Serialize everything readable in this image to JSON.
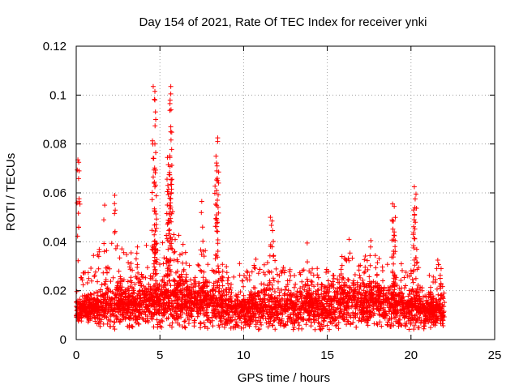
{
  "chart_data": {
    "type": "scatter",
    "title": "Day 154 of 2021, Rate Of TEC Index for receiver ynki",
    "xlabel": "GPS time / hours",
    "ylabel": "ROTI / TECUs",
    "xlim": [
      0,
      25
    ],
    "ylim": [
      0,
      0.12
    ],
    "x_ticks": [
      0,
      5,
      10,
      15,
      20,
      25
    ],
    "x_tick_labels": [
      "0",
      "5",
      "10",
      "15",
      "20",
      "25"
    ],
    "y_ticks": [
      0,
      0.02,
      0.04,
      0.06,
      0.08,
      0.1,
      0.12
    ],
    "y_tick_labels": [
      "0",
      "0.02",
      "0.04",
      "0.06",
      "0.08",
      "0.1",
      "0.12"
    ],
    "grid": true,
    "marker": "+",
    "series": [
      {
        "name": "ROTI",
        "color": "#ff0000",
        "x_range": [
          0,
          22
        ],
        "notable_points": [
          {
            "x": 0.1,
            "y": 0.0735
          },
          {
            "x": 0.15,
            "y": 0.0725
          },
          {
            "x": 4.6,
            "y": 0.1035
          },
          {
            "x": 4.7,
            "y": 0.1015
          },
          {
            "x": 4.7,
            "y": 0.098
          },
          {
            "x": 4.75,
            "y": 0.09
          },
          {
            "x": 4.7,
            "y": 0.08
          },
          {
            "x": 4.75,
            "y": 0.0765
          },
          {
            "x": 4.6,
            "y": 0.0665
          },
          {
            "x": 4.7,
            "y": 0.0625
          },
          {
            "x": 5.65,
            "y": 0.1035
          },
          {
            "x": 5.65,
            "y": 0.1005
          },
          {
            "x": 5.6,
            "y": 0.0965
          },
          {
            "x": 5.65,
            "y": 0.087
          },
          {
            "x": 5.65,
            "y": 0.085
          },
          {
            "x": 5.45,
            "y": 0.0745
          },
          {
            "x": 5.5,
            "y": 0.0715
          },
          {
            "x": 5.6,
            "y": 0.0745
          },
          {
            "x": 5.55,
            "y": 0.0675
          },
          {
            "x": 5.7,
            "y": 0.0635
          },
          {
            "x": 5.45,
            "y": 0.0605
          },
          {
            "x": 8.45,
            "y": 0.0825
          },
          {
            "x": 8.45,
            "y": 0.081
          },
          {
            "x": 8.35,
            "y": 0.075
          },
          {
            "x": 8.4,
            "y": 0.069
          },
          {
            "x": 8.45,
            "y": 0.065
          },
          {
            "x": 8.5,
            "y": 0.064
          },
          {
            "x": 2.3,
            "y": 0.059
          },
          {
            "x": 1.7,
            "y": 0.055
          },
          {
            "x": 7.5,
            "y": 0.0565
          },
          {
            "x": 11.6,
            "y": 0.05
          },
          {
            "x": 11.7,
            "y": 0.0485
          },
          {
            "x": 13.8,
            "y": 0.0395
          },
          {
            "x": 16.3,
            "y": 0.041
          },
          {
            "x": 17.6,
            "y": 0.0405
          },
          {
            "x": 18.9,
            "y": 0.0555
          },
          {
            "x": 19.0,
            "y": 0.0545
          },
          {
            "x": 18.95,
            "y": 0.0485
          },
          {
            "x": 19.0,
            "y": 0.044
          },
          {
            "x": 19.05,
            "y": 0.0405
          },
          {
            "x": 20.2,
            "y": 0.0625
          },
          {
            "x": 20.3,
            "y": 0.0595
          },
          {
            "x": 20.25,
            "y": 0.0575
          },
          {
            "x": 20.15,
            "y": 0.053
          },
          {
            "x": 20.3,
            "y": 0.0335
          },
          {
            "x": 21.6,
            "y": 0.0325
          },
          {
            "x": 21.8,
            "y": 0.029
          }
        ],
        "baseline_envelope": [
          {
            "x": 0,
            "low": 0.007,
            "typical": 0.012,
            "high": 0.022
          },
          {
            "x": 1,
            "low": 0.006,
            "typical": 0.013,
            "high": 0.035
          },
          {
            "x": 2,
            "low": 0.004,
            "typical": 0.014,
            "high": 0.04
          },
          {
            "x": 3,
            "low": 0.004,
            "typical": 0.014,
            "high": 0.038
          },
          {
            "x": 4,
            "low": 0.005,
            "typical": 0.015,
            "high": 0.038
          },
          {
            "x": 5,
            "low": 0.005,
            "typical": 0.016,
            "high": 0.042
          },
          {
            "x": 6,
            "low": 0.005,
            "typical": 0.016,
            "high": 0.045
          },
          {
            "x": 7,
            "low": 0.004,
            "typical": 0.015,
            "high": 0.042
          },
          {
            "x": 8,
            "low": 0.004,
            "typical": 0.015,
            "high": 0.04
          },
          {
            "x": 9,
            "low": 0.004,
            "typical": 0.013,
            "high": 0.035
          },
          {
            "x": 10,
            "low": 0.004,
            "typical": 0.012,
            "high": 0.03
          },
          {
            "x": 11,
            "low": 0.004,
            "typical": 0.013,
            "high": 0.035
          },
          {
            "x": 12,
            "low": 0.004,
            "typical": 0.013,
            "high": 0.035
          },
          {
            "x": 13,
            "low": 0.004,
            "typical": 0.012,
            "high": 0.028
          },
          {
            "x": 14,
            "low": 0.004,
            "typical": 0.013,
            "high": 0.03
          },
          {
            "x": 15,
            "low": 0.004,
            "typical": 0.014,
            "high": 0.03
          },
          {
            "x": 16,
            "low": 0.004,
            "typical": 0.015,
            "high": 0.035
          },
          {
            "x": 17,
            "low": 0.004,
            "typical": 0.015,
            "high": 0.036
          },
          {
            "x": 18,
            "low": 0.005,
            "typical": 0.015,
            "high": 0.035
          },
          {
            "x": 19,
            "low": 0.005,
            "typical": 0.014,
            "high": 0.034
          },
          {
            "x": 20,
            "low": 0.004,
            "typical": 0.013,
            "high": 0.032
          },
          {
            "x": 21,
            "low": 0.004,
            "typical": 0.012,
            "high": 0.028
          },
          {
            "x": 22,
            "low": 0.005,
            "typical": 0.011,
            "high": 0.022
          }
        ]
      }
    ]
  }
}
